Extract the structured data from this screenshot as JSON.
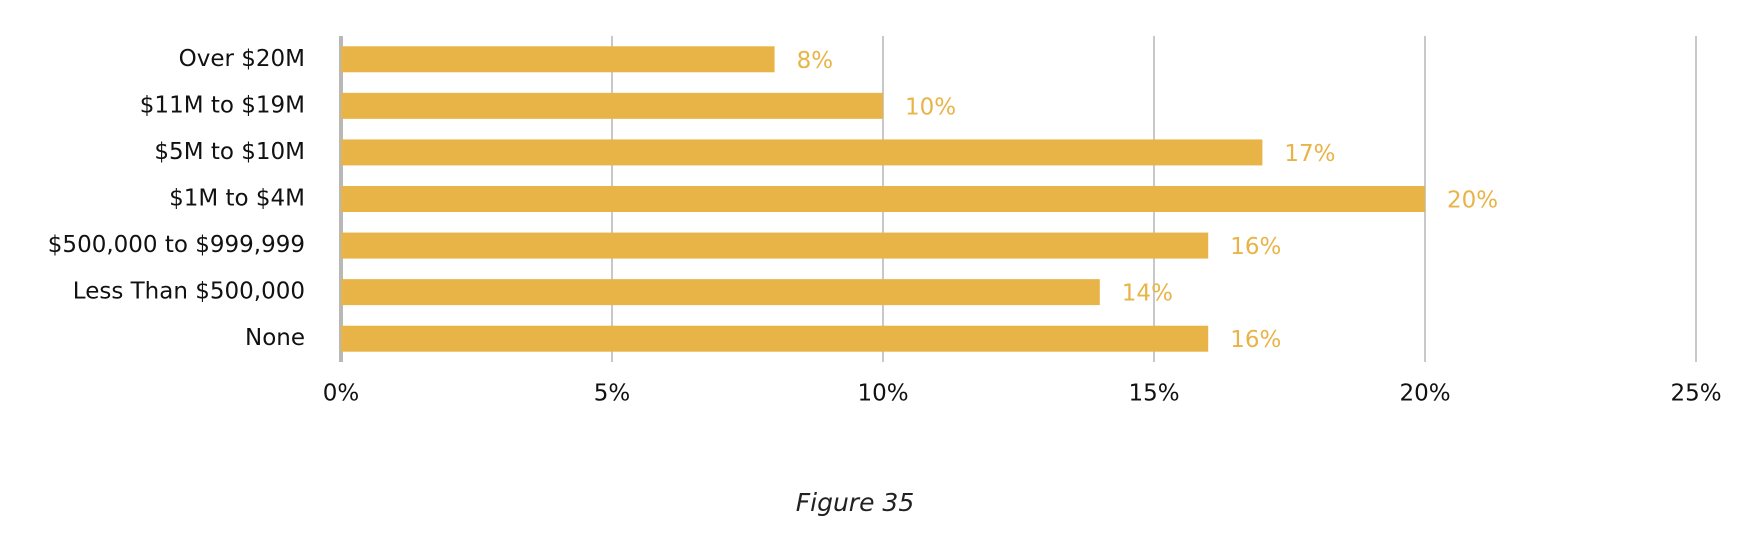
{
  "chart_data": {
    "type": "hbar",
    "categories": [
      "Over $20M",
      "$11M to $19M",
      "$5M to $10M",
      "$1M to $4M",
      "$500,000 to $999,999",
      "Less Than $500,000",
      "None"
    ],
    "values": [
      8,
      10,
      17,
      20,
      16,
      14,
      16
    ],
    "value_labels": [
      "8%",
      "10%",
      "17%",
      "20%",
      "16%",
      "14%",
      "16%"
    ],
    "color": "#e8b447",
    "xlim": [
      0,
      25
    ],
    "xticks": [
      {
        "value": 0,
        "label": "0%"
      },
      {
        "value": 5,
        "label": "5%"
      },
      {
        "value": 10,
        "label": "10%"
      },
      {
        "value": 15,
        "label": "15%"
      },
      {
        "value": 20,
        "label": "20%"
      },
      {
        "value": 25,
        "label": "25%"
      }
    ],
    "grid": true,
    "caption": "Figure 35"
  }
}
